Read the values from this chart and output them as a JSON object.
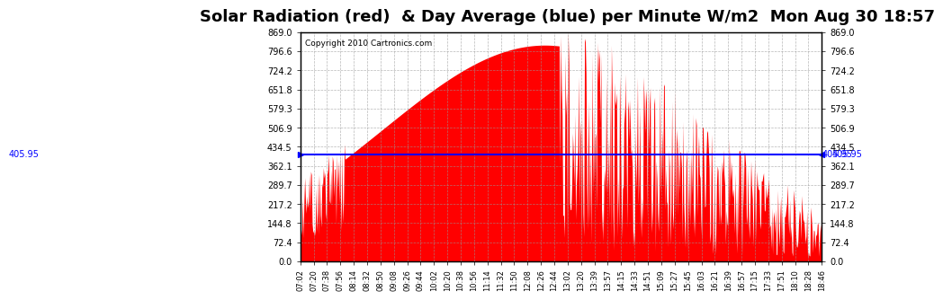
{
  "title": "Solar Radiation (red)  & Day Average (blue) per Minute W/m2  Mon Aug 30 18:57",
  "copyright": "Copyright 2010 Cartronics.com",
  "y_max": 869.0,
  "y_min": 0.0,
  "day_average": 405.95,
  "y_ticks": [
    0.0,
    72.4,
    144.8,
    217.2,
    289.7,
    362.1,
    434.5,
    506.9,
    579.3,
    651.8,
    724.2,
    796.6,
    869.0
  ],
  "bg_color": "#ffffff",
  "plot_bg_color": "#ffffff",
  "bar_color": "#ff0000",
  "avg_line_color": "#0000ff",
  "grid_color": "#999999",
  "title_fontsize": 13,
  "copyright_fontsize": 8,
  "x_tick_labels": [
    "07:02",
    "07:20",
    "07:38",
    "07:56",
    "08:14",
    "08:32",
    "08:50",
    "09:08",
    "09:26",
    "09:44",
    "10:02",
    "10:20",
    "10:38",
    "10:56",
    "11:14",
    "11:32",
    "11:50",
    "12:08",
    "12:26",
    "12:44",
    "13:02",
    "13:20",
    "13:39",
    "13:57",
    "14:15",
    "14:33",
    "14:51",
    "15:09",
    "15:27",
    "15:45",
    "16:03",
    "16:21",
    "16:39",
    "16:57",
    "17:15",
    "17:33",
    "17:51",
    "18:10",
    "18:28",
    "18:46"
  ]
}
